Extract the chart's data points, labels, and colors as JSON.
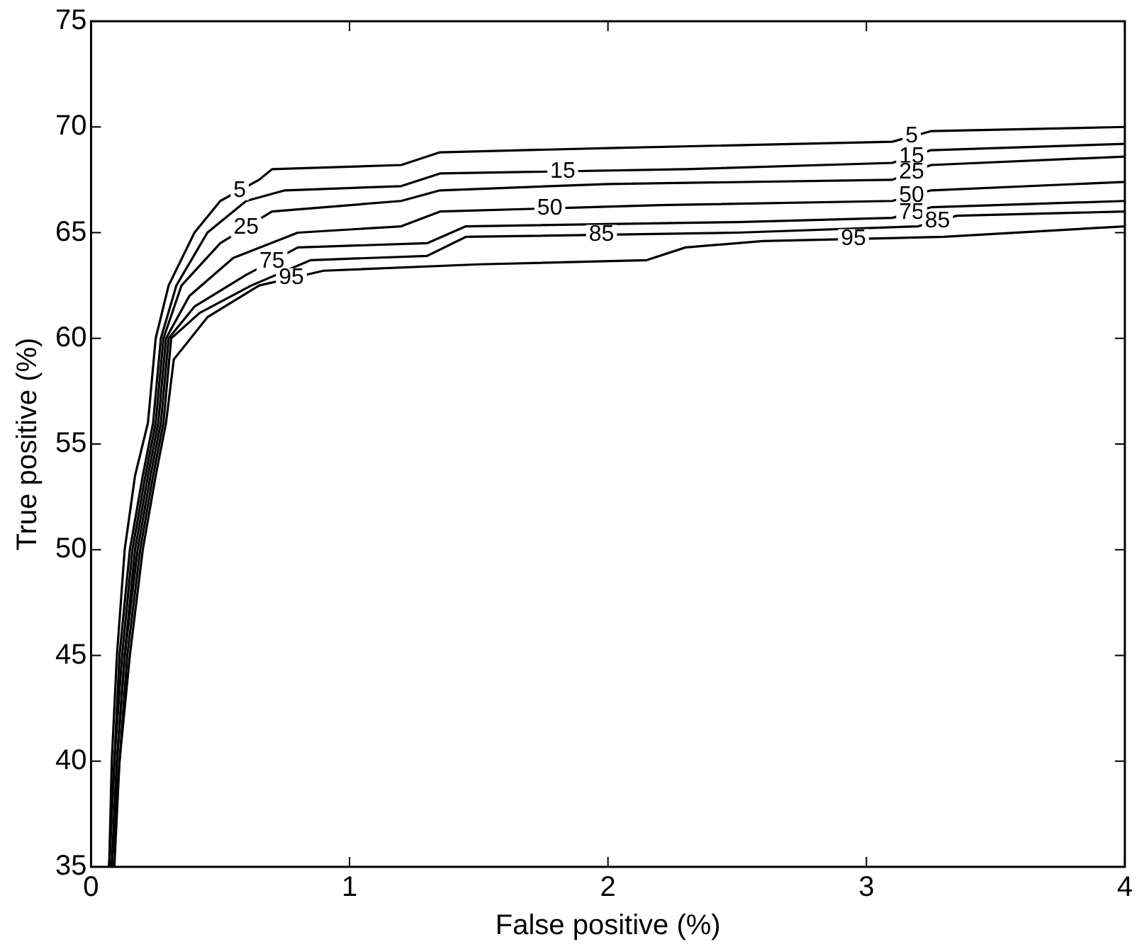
{
  "chart_data": {
    "type": "line",
    "xlabel": "False positive (%)",
    "ylabel": "True positive (%)",
    "xlim": [
      0,
      4
    ],
    "xticks": [
      0,
      1,
      2,
      3,
      4
    ],
    "ylim": [
      35,
      75
    ],
    "yticks": [
      35,
      40,
      45,
      50,
      55,
      60,
      65,
      70,
      75
    ],
    "grid": false,
    "legend": false,
    "marker": "none",
    "line_style": "solid",
    "series": [
      {
        "name": "5",
        "color": "#000000",
        "x": [
          0.07,
          0.08,
          0.1,
          0.13,
          0.17,
          0.22,
          0.25,
          0.3,
          0.4,
          0.5,
          0.65,
          0.7,
          1.2,
          1.35,
          2.0,
          3.1,
          3.25,
          4
        ],
        "values": [
          35,
          40,
          45,
          50,
          53.5,
          56,
          60,
          62.5,
          65,
          66.5,
          67.5,
          68,
          68.2,
          68.8,
          69.0,
          69.3,
          69.8,
          70.0
        ]
      },
      {
        "name": "15",
        "color": "#000000",
        "x": [
          0.07,
          0.09,
          0.11,
          0.15,
          0.2,
          0.24,
          0.27,
          0.33,
          0.45,
          0.6,
          0.75,
          1.2,
          1.35,
          2.3,
          3.1,
          3.25,
          4
        ],
        "values": [
          35,
          40,
          45,
          50,
          53.5,
          56,
          60,
          62.5,
          65,
          66.5,
          67,
          67.2,
          67.8,
          68.0,
          68.3,
          68.9,
          69.2
        ]
      },
      {
        "name": "25",
        "color": "#000000",
        "x": [
          0.07,
          0.09,
          0.12,
          0.16,
          0.21,
          0.25,
          0.28,
          0.35,
          0.5,
          0.7,
          1.2,
          1.35,
          2.0,
          3.1,
          3.25,
          4
        ],
        "values": [
          35,
          40,
          45,
          50,
          53.5,
          56,
          60,
          62.5,
          64.5,
          66,
          66.5,
          67,
          67.3,
          67.5,
          68.2,
          68.6
        ]
      },
      {
        "name": "50",
        "color": "#000000",
        "x": [
          0.08,
          0.1,
          0.13,
          0.17,
          0.22,
          0.26,
          0.29,
          0.38,
          0.55,
          0.8,
          1.2,
          1.35,
          2.2,
          3.1,
          3.25,
          4
        ],
        "values": [
          35,
          40,
          45,
          50,
          53.5,
          56,
          60,
          62,
          63.8,
          65,
          65.3,
          66,
          66.3,
          66.5,
          67,
          67.4
        ]
      },
      {
        "name": "75",
        "color": "#000000",
        "x": [
          0.08,
          0.1,
          0.13,
          0.18,
          0.23,
          0.27,
          0.3,
          0.4,
          0.6,
          0.8,
          1.3,
          1.45,
          2.5,
          3.1,
          3.25,
          4
        ],
        "values": [
          35,
          40,
          45,
          50,
          53.5,
          56,
          60,
          61.5,
          63,
          64.3,
          64.5,
          65.3,
          65.5,
          65.7,
          66.2,
          66.5
        ]
      },
      {
        "name": "85",
        "color": "#000000",
        "x": [
          0.08,
          0.11,
          0.14,
          0.19,
          0.24,
          0.28,
          0.31,
          0.42,
          0.62,
          0.85,
          1.3,
          1.45,
          2.5,
          3.2,
          3.35,
          4
        ],
        "values": [
          35,
          40,
          45,
          50,
          53.5,
          56,
          60,
          61.2,
          62.5,
          63.7,
          63.9,
          64.8,
          65.0,
          65.3,
          65.8,
          66.0
        ]
      },
      {
        "name": "95",
        "color": "#000000",
        "x": [
          0.09,
          0.11,
          0.15,
          0.2,
          0.25,
          0.29,
          0.32,
          0.45,
          0.65,
          0.9,
          1.5,
          2.15,
          2.3,
          2.6,
          3.3,
          4
        ],
        "values": [
          35,
          40,
          45,
          50,
          53.5,
          56,
          59,
          61,
          62.5,
          63.2,
          63.5,
          63.7,
          64.3,
          64.6,
          64.8,
          65.3
        ]
      }
    ]
  }
}
